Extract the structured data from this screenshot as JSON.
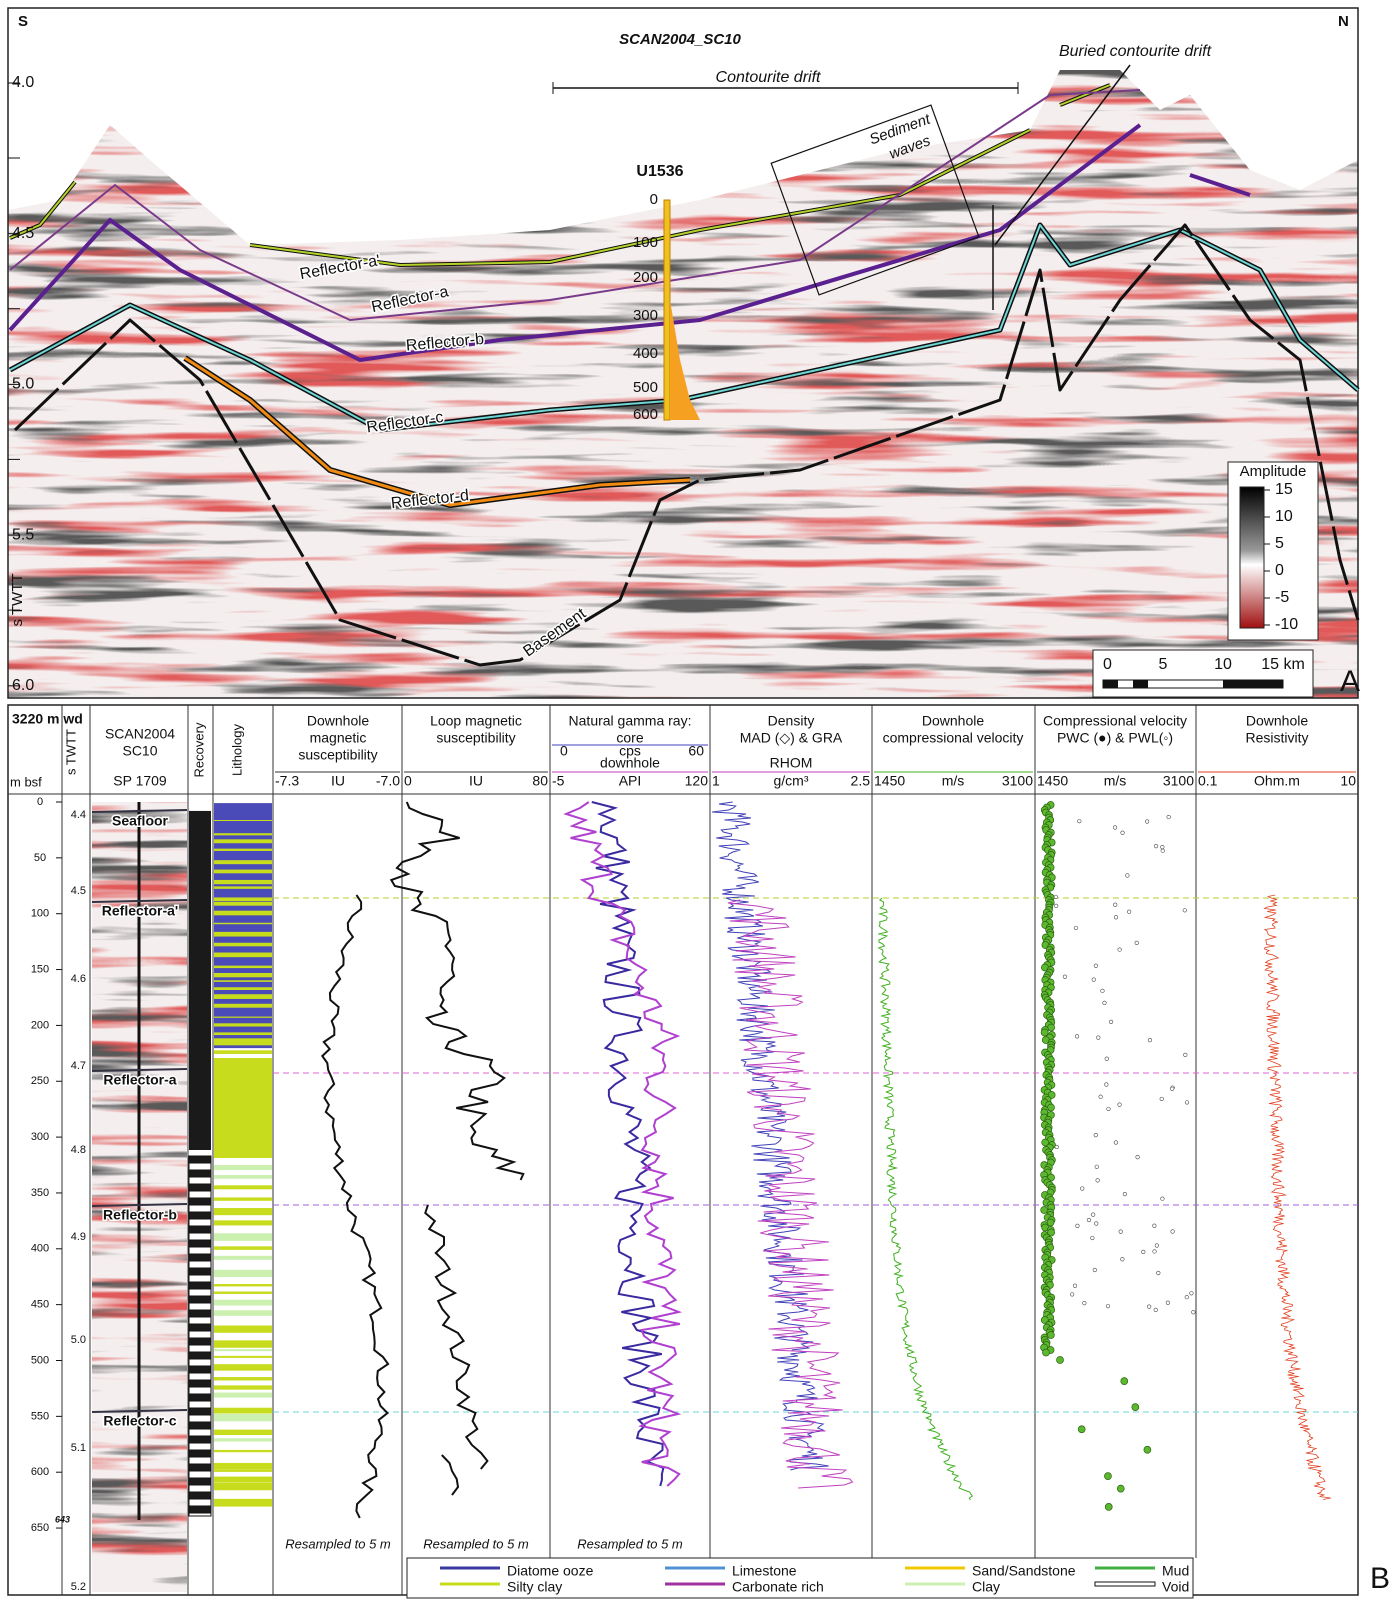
{
  "panel_a": {
    "left_corner": "S",
    "right_corner": "N",
    "title": "SCAN2004_SC10",
    "axis_label": "s TWTT",
    "yticks": [
      "4.0",
      "4.5",
      "5.0",
      "5.5",
      "6.0"
    ],
    "contourite_drift": "Contourite drift",
    "buried_drift": "Buried contourite drift",
    "sediment_waves": [
      "Sediment",
      "waves"
    ],
    "site": "U1536",
    "site_ticks": [
      "0",
      "100",
      "200",
      "300",
      "400",
      "500",
      "600"
    ],
    "reflectors": [
      "Reflector-a'",
      "Reflector-a",
      "Reflector-b",
      "Reflector-c",
      "Reflector-d",
      "Basement"
    ],
    "amplitude": {
      "title": "Amplitude",
      "ticks": [
        "15",
        "10",
        "5",
        "0",
        "-5",
        "-10"
      ]
    },
    "scale_bar": [
      "0",
      "5",
      "10",
      "15 km"
    ],
    "panel_label": "A"
  },
  "panel_b": {
    "water_depth": "3220 m wd",
    "depth_label": "m bsf",
    "twtt_label": "s TWTT",
    "seismic_header": [
      "SCAN2004",
      "SC10",
      "SP 1709"
    ],
    "recovery": "Recovery",
    "lithology": "Lithology",
    "depth_ticks": [
      "0",
      "50",
      "100",
      "150",
      "200",
      "250",
      "300",
      "350",
      "400",
      "450",
      "500",
      "550",
      "600",
      "650"
    ],
    "total_depth": "643",
    "twtt_ticks": [
      "4.4",
      "4.5",
      "4.6",
      "4.7",
      "4.8",
      "4.9",
      "5.0",
      "5.1",
      "5.2"
    ],
    "horizons": [
      "Seafloor",
      "Reflector-a'",
      "Reflector-a",
      "Reflector-b",
      "Reflector-c"
    ],
    "tracks": [
      {
        "title": [
          "Downhole",
          "magnetic",
          "susceptibility"
        ],
        "scale": [
          "-7.3",
          "IU",
          "-7.0"
        ]
      },
      {
        "title": [
          "Loop magnetic",
          "susceptibility"
        ],
        "scale": [
          "0",
          "IU",
          "80"
        ]
      },
      {
        "title": [
          "Natural gamma ray:",
          "core"
        ],
        "scale_top": [
          "0",
          "cps",
          "60"
        ],
        "subtitle": "downhole",
        "scale": [
          "-5",
          "API",
          "120"
        ]
      },
      {
        "title": [
          "Density",
          "MAD (◇) & GRA"
        ],
        "subtitle": "RHOM",
        "scale": [
          "1",
          "g/cm³",
          "2.5"
        ]
      },
      {
        "title": [
          "Downhole",
          "compressional velocity"
        ],
        "scale": [
          "1450",
          "m/s",
          "3100"
        ]
      },
      {
        "title": [
          "Compressional velocity",
          "PWC (●) & PWL(◦)"
        ],
        "scale": [
          "1450",
          "m/s",
          "3100"
        ]
      },
      {
        "title": [
          "Downhole",
          "Resistivity"
        ],
        "scale": [
          "0.1",
          "Ohm.m",
          "10"
        ]
      }
    ],
    "notes": [
      "Resampled to 5 m",
      "Resampled to 5 m",
      "Resampled to 5 m"
    ],
    "legend": [
      "Diatome ooze",
      "Silty clay",
      "Limestone",
      "Carbonate rich",
      "Sand/Sandstone",
      "Clay",
      "Mud",
      "Void"
    ],
    "panel_label": "B"
  }
}
